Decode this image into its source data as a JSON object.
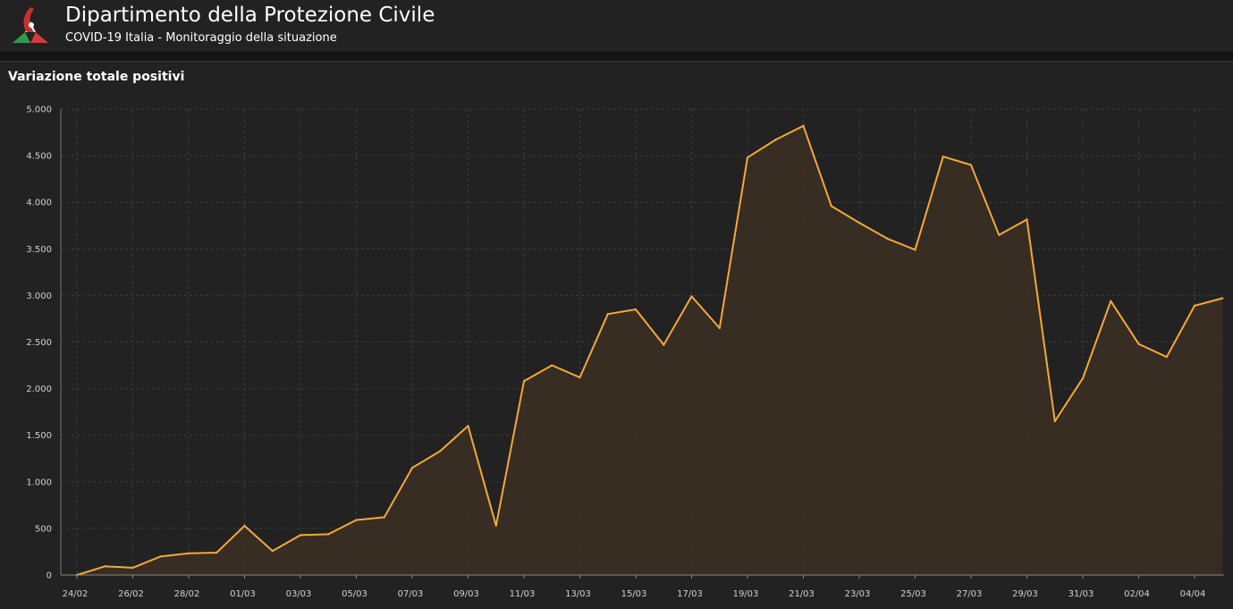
{
  "header": {
    "title": "Dipartimento della Protezione Civile",
    "subtitle": "COVID-19 Italia - Monitoraggio della situazione",
    "logo_icon": "protezione-civile-logo-icon"
  },
  "panel": {
    "title": "Variazione totale positivi"
  },
  "colors": {
    "line": "#f5a83a",
    "fill": "#3a2f22",
    "grid": "#3c3c3c",
    "background": "#222222"
  },
  "chart_data": {
    "type": "area",
    "title": "Variazione totale positivi",
    "xlabel": "",
    "ylabel": "",
    "ylim": [
      0,
      5000
    ],
    "yticks": [
      0,
      500,
      1000,
      1500,
      2000,
      2500,
      3000,
      3500,
      4000,
      4500,
      5000
    ],
    "ytick_labels": [
      "0",
      "500",
      "1.000",
      "1.500",
      "2.000",
      "2.500",
      "3.000",
      "3.500",
      "4.000",
      "4.500",
      "5.000"
    ],
    "xtick_labels": [
      "24/02",
      "26/02",
      "28/02",
      "01/03",
      "03/03",
      "05/03",
      "07/03",
      "09/03",
      "11/03",
      "13/03",
      "15/03",
      "17/03",
      "19/03",
      "21/03",
      "23/03",
      "25/03",
      "27/03",
      "29/03",
      "31/03",
      "02/04",
      "04/04"
    ],
    "grid": true,
    "x": [
      "24/02",
      "25/02",
      "26/02",
      "27/02",
      "28/02",
      "29/02",
      "01/03",
      "02/03",
      "03/03",
      "04/03",
      "05/03",
      "06/03",
      "07/03",
      "08/03",
      "09/03",
      "10/03",
      "11/03",
      "12/03",
      "13/03",
      "14/03",
      "15/03",
      "16/03",
      "17/03",
      "18/03",
      "19/03",
      "20/03",
      "21/03",
      "22/03",
      "23/03",
      "24/03",
      "25/03",
      "26/03",
      "27/03",
      "28/03",
      "29/03",
      "30/03",
      "31/03",
      "01/04",
      "02/04",
      "03/04",
      "04/04",
      "05/04"
    ],
    "values": [
      0,
      93,
      78,
      200,
      233,
      240,
      528,
      258,
      428,
      438,
      590,
      620,
      1150,
      1330,
      1600,
      530,
      2080,
      2250,
      2120,
      2800,
      2850,
      2470,
      2990,
      2650,
      4480,
      4670,
      4820,
      3960,
      3780,
      3610,
      3490,
      4490,
      4400,
      3650,
      3815,
      1650,
      2110,
      2940,
      2480,
      2340,
      2890,
      2970
    ]
  }
}
